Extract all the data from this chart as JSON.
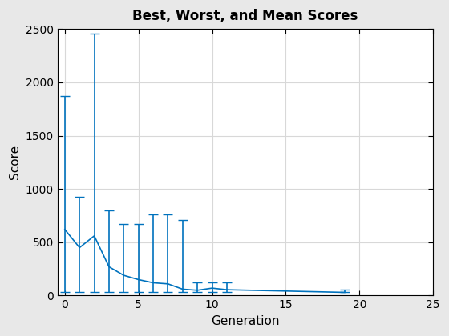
{
  "title": "Best, Worst, and Mean Scores",
  "xlabel": "Generation",
  "ylabel": "Score",
  "xlim": [
    -0.5,
    25
  ],
  "ylim": [
    0,
    2500
  ],
  "x": [
    0,
    1,
    2,
    3,
    4,
    5,
    6,
    7,
    8,
    9,
    10,
    11,
    19
  ],
  "y_mean": [
    620,
    450,
    560,
    270,
    190,
    150,
    120,
    110,
    60,
    50,
    70,
    55,
    30
  ],
  "y_upper": [
    1870,
    930,
    2460,
    800,
    670,
    670,
    760,
    760,
    710,
    120,
    125,
    120,
    55
  ],
  "y_lower": [
    30,
    30,
    30,
    30,
    30,
    30,
    30,
    30,
    30,
    30,
    30,
    30,
    30
  ],
  "line_color": "#0072BD",
  "capsize": 4,
  "linewidth": 1.2,
  "plot_bg": "#FFFFFF",
  "figure_bg": "#E8E8E8",
  "grid_color": "#D8D8D8",
  "title_fontsize": 12,
  "label_fontsize": 11,
  "xticks": [
    0,
    5,
    10,
    15,
    20,
    25
  ],
  "yticks": [
    0,
    500,
    1000,
    1500,
    2000,
    2500
  ]
}
